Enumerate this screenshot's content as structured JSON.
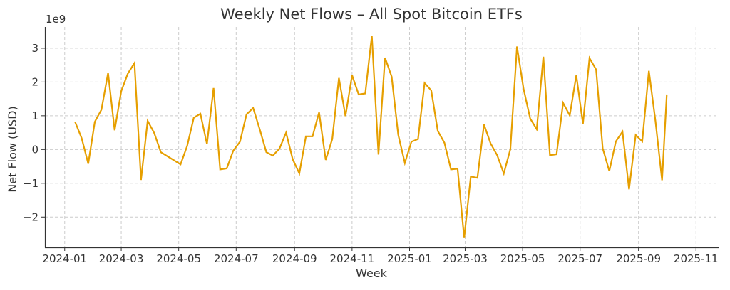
{
  "chart_data": {
    "type": "line",
    "title": "Weekly Net Flows – All Spot Bitcoin ETFs",
    "xlabel": "Week",
    "ylabel": "Net Flow (USD)",
    "y_multiplier_label": "1e9",
    "xlim": [
      "2023-12-11",
      "2025-11-25"
    ],
    "ylim": [
      -2.9,
      3.63
    ],
    "grid": true,
    "line_color": "#E69F00",
    "x_ticks": [
      "2024-01",
      "2024-03",
      "2024-05",
      "2024-07",
      "2024-09",
      "2024-11",
      "2025-01",
      "2025-03",
      "2025-05",
      "2025-07",
      "2025-09",
      "2025-11"
    ],
    "y_ticks": [
      -2,
      -1,
      0,
      1,
      2,
      3
    ],
    "y_tick_labels": [
      "−2",
      "−1",
      "0",
      "1",
      "2",
      "3"
    ],
    "x": [
      "2024-01-12",
      "2024-01-19",
      "2024-01-26",
      "2024-02-02",
      "2024-02-09",
      "2024-02-16",
      "2024-02-23",
      "2024-03-01",
      "2024-03-08",
      "2024-03-15",
      "2024-03-22",
      "2024-03-29",
      "2024-04-05",
      "2024-04-12",
      "2024-05-03",
      "2024-05-10",
      "2024-05-17",
      "2024-05-24",
      "2024-05-31",
      "2024-06-07",
      "2024-06-14",
      "2024-06-21",
      "2024-06-28",
      "2024-07-05",
      "2024-07-12",
      "2024-07-19",
      "2024-07-26",
      "2024-08-02",
      "2024-08-09",
      "2024-08-16",
      "2024-08-23",
      "2024-08-30",
      "2024-09-06",
      "2024-09-13",
      "2024-09-20",
      "2024-09-27",
      "2024-10-04",
      "2024-10-11",
      "2024-10-18",
      "2024-10-25",
      "2024-11-01",
      "2024-11-08",
      "2024-11-15",
      "2024-11-22",
      "2024-11-29",
      "2024-12-06",
      "2024-12-13",
      "2024-12-20",
      "2024-12-27",
      "2025-01-03",
      "2025-01-10",
      "2025-01-17",
      "2025-01-24",
      "2025-01-31",
      "2025-02-07",
      "2025-02-14",
      "2025-02-21",
      "2025-02-28",
      "2025-03-07",
      "2025-03-14",
      "2025-03-21",
      "2025-03-28",
      "2025-04-04",
      "2025-04-11",
      "2025-04-18",
      "2025-04-25",
      "2025-05-02",
      "2025-05-09",
      "2025-05-16",
      "2025-05-23",
      "2025-05-30",
      "2025-06-06",
      "2025-06-13",
      "2025-06-20",
      "2025-06-27",
      "2025-07-04",
      "2025-07-11",
      "2025-07-18",
      "2025-07-25",
      "2025-08-01",
      "2025-08-08",
      "2025-08-15",
      "2025-08-22",
      "2025-08-29",
      "2025-09-05",
      "2025-09-12",
      "2025-09-19",
      "2025-09-26",
      "2025-10-01"
    ],
    "values": [
      0.82,
      0.34,
      -0.42,
      0.82,
      1.18,
      2.27,
      0.57,
      1.73,
      2.25,
      2.56,
      -0.9,
      0.85,
      0.49,
      -0.08,
      -0.44,
      0.11,
      0.94,
      1.06,
      0.16,
      1.82,
      -0.59,
      -0.56,
      -0.03,
      0.23,
      1.04,
      1.23,
      0.6,
      -0.08,
      -0.18,
      0.03,
      0.5,
      -0.29,
      -0.71,
      0.39,
      0.39,
      1.1,
      -0.31,
      0.31,
      2.12,
      0.99,
      2.2,
      1.63,
      1.66,
      3.37,
      -0.15,
      2.72,
      2.16,
      0.44,
      -0.4,
      0.23,
      0.31,
      1.97,
      1.75,
      0.55,
      0.2,
      -0.59,
      -0.57,
      -2.62,
      -0.8,
      -0.84,
      0.74,
      0.18,
      -0.17,
      -0.71,
      0.01,
      3.05,
      1.8,
      0.92,
      0.6,
      2.75,
      -0.17,
      -0.14,
      1.38,
      1.01,
      2.2,
      0.76,
      2.71,
      2.37,
      0.04,
      -0.64,
      0.24,
      0.53,
      -1.18,
      0.43,
      0.24,
      2.33,
      0.85,
      -0.91,
      1.63
    ]
  }
}
